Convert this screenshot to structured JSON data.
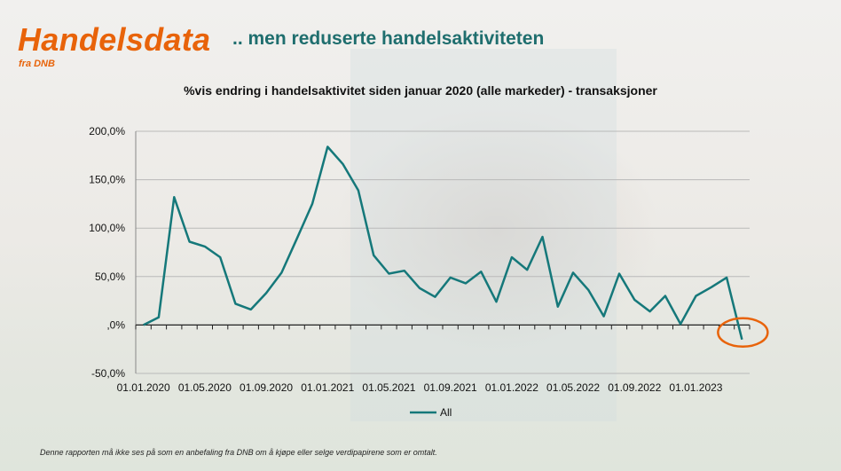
{
  "header": {
    "brand": "Handelsdata",
    "brand_sub": "fra DNB",
    "headline": ".. men reduserte handelsaktiviteten"
  },
  "footer": {
    "disclaimer": "Denne rapporten må ikke ses på som en anbefaling fra DNB om å kjøpe eller selge verdipapirene som er omtalt."
  },
  "colors": {
    "brand": "#e8630a",
    "headline": "#1f6e6e",
    "series": "#15787a",
    "highlight": "#e8630a"
  },
  "chart_data": {
    "type": "line",
    "title": "%vis endring i handelsaktivitet siden januar 2020 (alle markeder) - transaksjoner",
    "xlabel": "",
    "ylabel": "",
    "ylim": [
      -50,
      200
    ],
    "yticks": [
      "-50,0%",
      ",0%",
      "50,0%",
      "100,0%",
      "150,0%",
      "200,0%"
    ],
    "ytick_values": [
      -50,
      0,
      50,
      100,
      150,
      200
    ],
    "xtick_labels": [
      "01.01.2020",
      "01.05.2020",
      "01.09.2020",
      "01.01.2021",
      "01.05.2021",
      "01.09.2021",
      "01.01.2022",
      "01.05.2022",
      "01.09.2022",
      "01.01.2023"
    ],
    "xtick_month_index": [
      0,
      4,
      8,
      12,
      16,
      20,
      24,
      28,
      32,
      36
    ],
    "grid": true,
    "legend": "bottom",
    "highlight_last_point": true,
    "series": [
      {
        "name": "All",
        "values": [
          0,
          8,
          132,
          86,
          81,
          70,
          22,
          16,
          33,
          54,
          89,
          125,
          184,
          166,
          139,
          72,
          53,
          56,
          38,
          29,
          49,
          43,
          55,
          24,
          70,
          57,
          91,
          19,
          54,
          36,
          9,
          53,
          26,
          14,
          30,
          1,
          30,
          39,
          49,
          -15
        ]
      }
    ]
  }
}
